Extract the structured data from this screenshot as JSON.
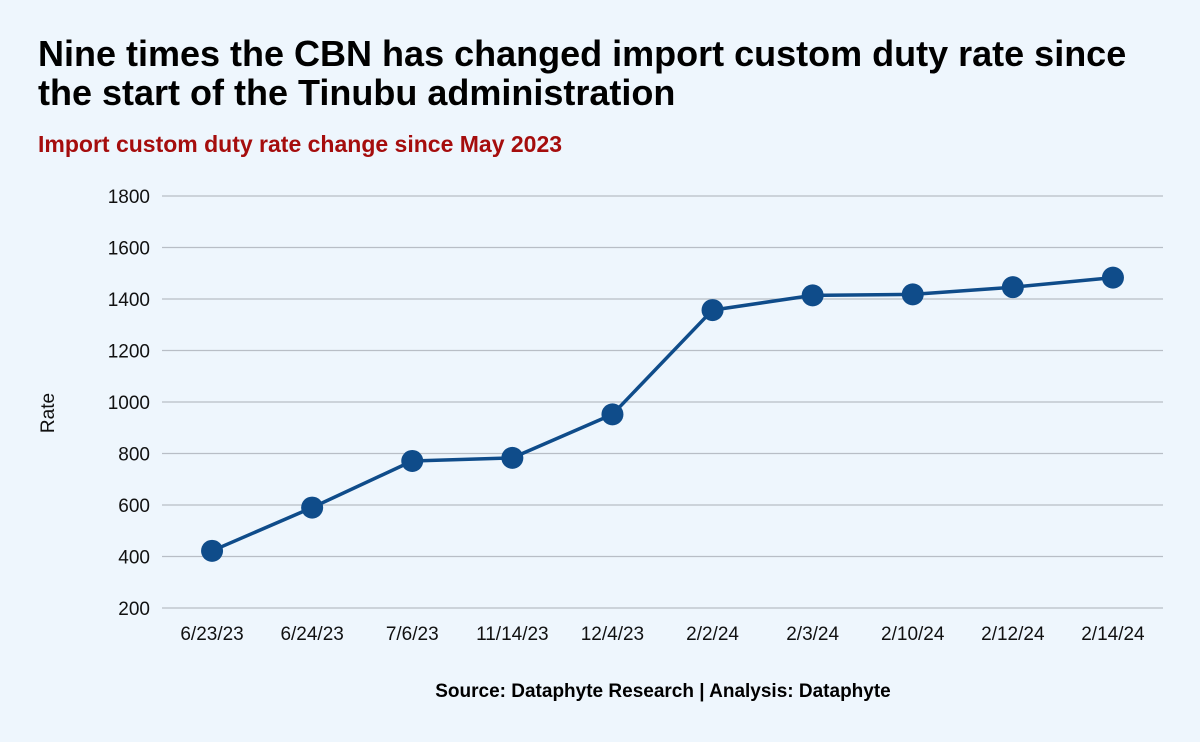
{
  "header": {
    "title": "Nine times the CBN has changed import custom duty rate since the start of the Tinubu administration",
    "subtitle": "Import custom duty rate change since May 2023"
  },
  "footer": {
    "source": "Source: Dataphyte Research | Analysis: Dataphyte"
  },
  "colors": {
    "background": "#eef6fd",
    "subtitle": "#a50d0d",
    "series": "#0f4c8a",
    "gridline": "#b8bec6"
  },
  "chart_data": {
    "type": "line",
    "title": "Nine times the CBN has changed import custom duty rate since the start of the Tinubu administration",
    "subtitle": "Import custom duty rate change since May 2023",
    "xlabel": "",
    "ylabel": "Rate",
    "ylim": [
      200,
      1800
    ],
    "yticks": [
      200,
      400,
      600,
      800,
      1000,
      1200,
      1400,
      1600,
      1800
    ],
    "grid": true,
    "legend": "none",
    "x": [
      "6/23/23",
      "6/24/23",
      "7/6/23",
      "11/14/23",
      "12/4/23",
      "2/2/24",
      "2/3/24",
      "2/10/24",
      "2/12/24",
      "2/14/24"
    ],
    "series": [
      {
        "values": [
          422,
          590,
          771,
          783,
          952,
          1357,
          1414,
          1418,
          1446,
          1483
        ]
      }
    ]
  }
}
